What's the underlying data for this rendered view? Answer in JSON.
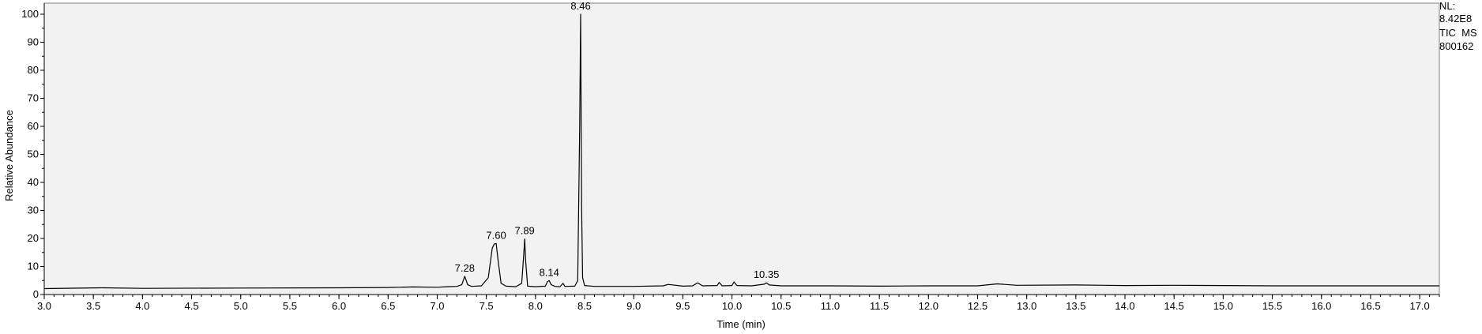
{
  "chart_data": {
    "type": "line",
    "title": "",
    "xlabel": "Time (min)",
    "ylabel": "Relative Abundance",
    "xlim": [
      3.0,
      17.2
    ],
    "ylim": [
      0,
      100
    ],
    "x_ticks": [
      "3.0",
      "3.5",
      "4.0",
      "4.5",
      "5.0",
      "5.5",
      "6.0",
      "6.5",
      "7.0",
      "7.5",
      "8.0",
      "8.5",
      "9.0",
      "9.5",
      "10.0",
      "10.5",
      "11.0",
      "11.5",
      "12.0",
      "12.5",
      "13.0",
      "13.5",
      "14.0",
      "14.5",
      "15.0",
      "15.5",
      "16.0",
      "16.5",
      "17.0"
    ],
    "y_ticks": [
      "0",
      "10",
      "20",
      "30",
      "40",
      "50",
      "60",
      "70",
      "80",
      "90",
      "100"
    ],
    "grid": false,
    "background": "#f2f2f2",
    "line_color": "#000000",
    "series": [
      {
        "x": [
          3.0,
          3.6,
          4.0,
          5.0,
          6.0,
          6.5,
          6.75,
          7.0,
          7.1,
          7.2,
          7.25,
          7.28,
          7.31,
          7.35,
          7.45,
          7.52,
          7.56,
          7.58,
          7.6,
          7.62,
          7.65,
          7.7,
          7.8,
          7.86,
          7.88,
          7.89,
          7.9,
          7.92,
          8.0,
          8.1,
          8.12,
          8.14,
          8.16,
          8.2,
          8.25,
          8.28,
          8.3,
          8.4,
          8.43,
          8.45,
          8.46,
          8.47,
          8.48,
          8.5,
          8.6,
          9.0,
          9.3,
          9.35,
          9.5,
          9.6,
          9.65,
          9.7,
          9.85,
          9.87,
          9.9,
          10.0,
          10.02,
          10.05,
          10.2,
          10.33,
          10.35,
          10.38,
          10.5,
          11.0,
          11.5,
          12.0,
          12.5,
          12.7,
          12.9,
          13.5,
          14.0,
          14.5,
          15.0,
          15.5,
          16.0,
          16.5,
          17.0,
          17.2
        ],
        "y": [
          2.1,
          2.4,
          2.2,
          2.3,
          2.4,
          2.5,
          2.7,
          2.6,
          2.8,
          2.9,
          3.5,
          6.5,
          3.5,
          2.9,
          3.1,
          6.0,
          16.5,
          18.0,
          18.2,
          12.0,
          4.0,
          3.0,
          2.8,
          4.0,
          14.0,
          19.8,
          12.0,
          3.0,
          2.8,
          3.0,
          4.5,
          5.0,
          3.5,
          2.9,
          2.8,
          4.0,
          2.9,
          3.0,
          5.0,
          60.0,
          100.0,
          30.0,
          6.0,
          3.2,
          2.9,
          2.9,
          3.1,
          3.6,
          3.0,
          3.1,
          4.2,
          3.1,
          3.2,
          4.3,
          3.1,
          3.2,
          4.5,
          3.2,
          3.1,
          3.7,
          4.2,
          3.4,
          3.1,
          3.1,
          3.0,
          3.1,
          3.1,
          3.8,
          3.3,
          3.4,
          3.2,
          3.3,
          3.2,
          3.1,
          3.1,
          3.1,
          3.1,
          3.1
        ]
      }
    ],
    "peak_labels": [
      {
        "x": 7.28,
        "y": 6.5,
        "text": "7.28"
      },
      {
        "x": 7.6,
        "y": 18.2,
        "text": "7.60"
      },
      {
        "x": 7.89,
        "y": 19.8,
        "text": "7.89"
      },
      {
        "x": 8.14,
        "y": 5.0,
        "text": "8.14"
      },
      {
        "x": 8.46,
        "y": 100.0,
        "text": "8.46"
      },
      {
        "x": 10.35,
        "y": 4.2,
        "text": "10.35"
      }
    ]
  },
  "info": {
    "nl_label": "NL:",
    "nl_value": "8.42E8",
    "trace_label": "TIC  MS",
    "file_id": "800162"
  }
}
